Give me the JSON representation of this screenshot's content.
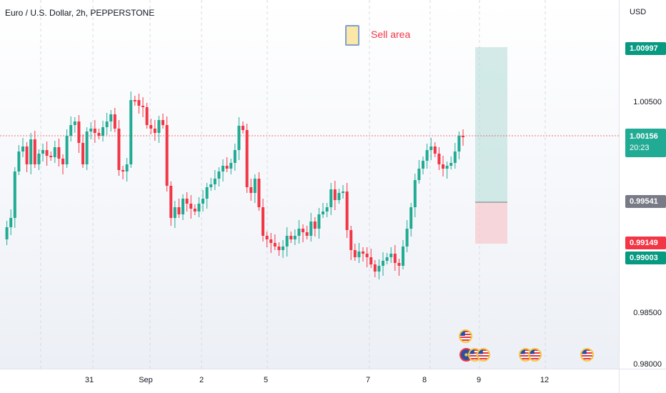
{
  "header": {
    "symbol_title": "Euro / U.S. Dollar, 2h, PEPPERSTONE"
  },
  "note": {
    "text": "Sell area"
  },
  "price_axis": {
    "currency": "USD",
    "ticks": [
      "1.00500",
      "0.98500",
      "0.98000"
    ],
    "tags": {
      "target": "1.00997",
      "current_price": "1.00156",
      "countdown": "20:23",
      "entry": "0.99541",
      "stop": "0.99149",
      "low": "0.99003"
    }
  },
  "time_axis": {
    "labels": [
      "31",
      "Sep",
      "2",
      "5",
      "7",
      "8",
      "9",
      "12"
    ]
  },
  "colors": {
    "up": "#22ab94",
    "down": "#f23645",
    "profit_zone": "#b7ded8",
    "loss_zone": "#f7c9cc",
    "price_line": "#f23645"
  },
  "events": {
    "icons": [
      "us-flag-icon",
      "eu-flag-icon",
      "us-flag-icon",
      "us-flag-icon",
      "us-flag-icon",
      "us-flag-icon",
      "us-flag-icon"
    ]
  }
}
